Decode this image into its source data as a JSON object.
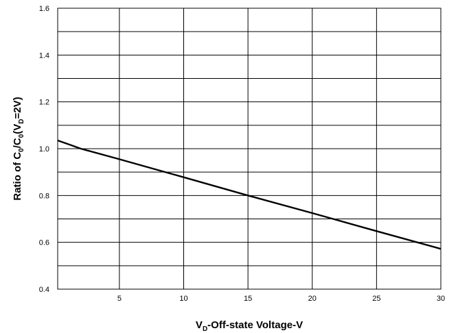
{
  "chart_data": {
    "type": "line",
    "title": "",
    "xlabel": {
      "prefix": "V",
      "sub": "D",
      "suffix": "-Off-state Voltage-V"
    },
    "ylabel": {
      "p1": "Ratio of C",
      "s1": "0",
      "p2": "/C",
      "s2": "0",
      "p3": "(V",
      "s3": "D",
      "p4": "=2V)"
    },
    "xlim": [
      0.2,
      30
    ],
    "ylim": [
      0.4,
      1.6
    ],
    "x_ticks": [
      5,
      10,
      15,
      20,
      25,
      30
    ],
    "y_ticks": [
      0.4,
      0.6,
      0.8,
      1.0,
      1.2,
      1.4,
      1.6
    ],
    "y_tick_labels": [
      "0.4",
      "0.6",
      "0.8",
      "1.0",
      "1.2",
      "1.4",
      "1.6"
    ],
    "grid": true,
    "series": [
      {
        "x": [
          0.2,
          1,
          2,
          5,
          10,
          15,
          20,
          25,
          30
        ],
        "y": [
          1.035,
          1.02,
          1.0,
          0.955,
          0.878,
          0.8,
          0.725,
          0.648,
          0.572
        ]
      }
    ],
    "colors": {
      "line": "#000000",
      "grid": "#000000",
      "background": "#ffffff"
    }
  }
}
